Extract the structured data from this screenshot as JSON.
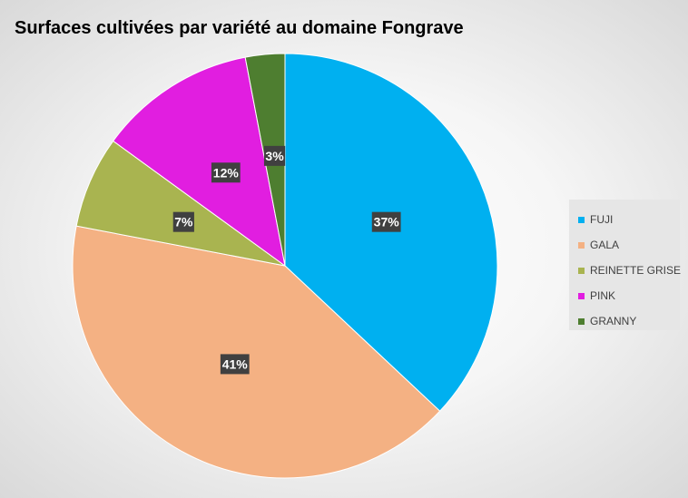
{
  "chart_data": {
    "type": "pie",
    "title": "Surfaces cultivées par variété au domaine Fongrave",
    "categories": [
      "FUJI",
      "GALA",
      "REINETTE GRISE",
      "PINK",
      "GRANNY"
    ],
    "values": [
      37,
      41,
      7,
      12,
      3
    ],
    "labels": [
      "37%",
      "41%",
      "7%",
      "12%",
      "3%"
    ],
    "colors": [
      "#00B0F0",
      "#F4B183",
      "#A9B450",
      "#E11EE0",
      "#4E7E30"
    ],
    "start_angle_deg": 0,
    "direction": "clockwise",
    "legend_position": "right",
    "data_labels": true
  }
}
